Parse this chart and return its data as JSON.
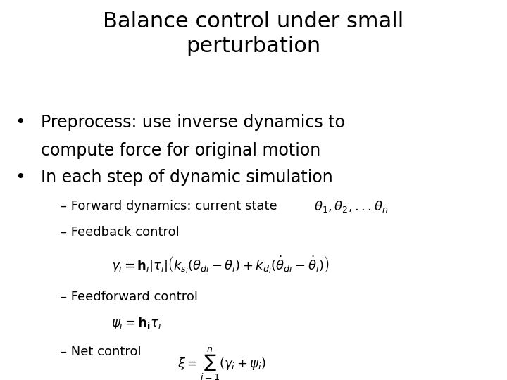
{
  "title": "Balance control under small\nperturbation",
  "title_fontsize": 22,
  "background_color": "#ffffff",
  "text_color": "#000000",
  "bullet1_line1": "Preprocess: use inverse dynamics to",
  "bullet1_line2": "compute force for original motion",
  "bullet2": "In each step of dynamic simulation",
  "sub1_text": "– Forward dynamics: current state   ",
  "sub1_math": "$\\theta_1, \\theta_2, ...\\theta_n$",
  "sub2": "– Feedback control",
  "eq1": "$\\gamma_i = \\mathbf{h}_i|\\tau_i|\\left(k_{s_i}(\\theta_{di} - \\theta_i) + k_{d_i}(\\dot{\\theta}_{di} - \\dot{\\theta}_i)\\right)$",
  "sub3": "– Feedforward control",
  "eq2": "$\\psi_i = \\mathbf{h_i}\\tau_i$",
  "sub4_text": "– Net control   ",
  "sub4_math": "$\\xi = \\sum_{i=1}^{n}(\\gamma_i + \\psi_i)$",
  "title_fontsize_val": 22,
  "bullet_fontsize_val": 17,
  "sub_fontsize_val": 13,
  "eq_fontsize_val": 13
}
